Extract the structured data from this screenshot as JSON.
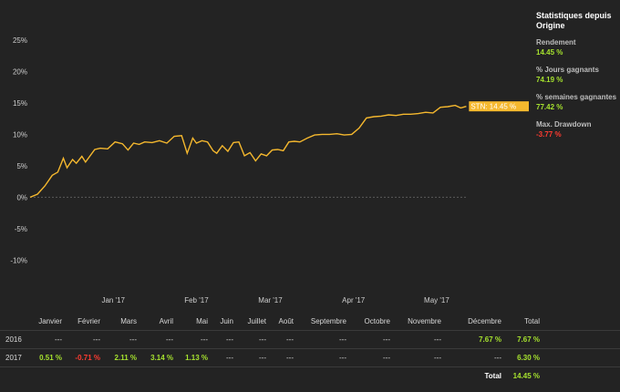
{
  "chart_data": {
    "type": "line",
    "xlim": [
      0,
      26
    ],
    "ylim": [
      -15,
      27
    ],
    "y_ticks": [
      25,
      20,
      15,
      10,
      5,
      0,
      -5,
      -10
    ],
    "y_tick_labels": [
      "25%",
      "20%",
      "15%",
      "10%",
      "5%",
      "0%",
      "-5%",
      "-10%"
    ],
    "x_ticks": [
      4.5,
      9,
      13,
      17.5,
      22
    ],
    "x_tick_labels": [
      "Jan '17",
      "Feb '17",
      "Mar '17",
      "Apr '17",
      "May '17"
    ],
    "series": [
      {
        "name": "STN",
        "color": "#f5b82e",
        "x": [
          0,
          0.4,
          0.8,
          1.2,
          1.5,
          1.8,
          2.0,
          2.3,
          2.5,
          2.8,
          3.0,
          3.5,
          3.8,
          4.2,
          4.6,
          5.0,
          5.3,
          5.6,
          5.9,
          6.2,
          6.6,
          7.0,
          7.4,
          7.8,
          8.2,
          8.5,
          8.8,
          9.0,
          9.3,
          9.6,
          9.9,
          10.1,
          10.4,
          10.7,
          11.0,
          11.3,
          11.6,
          11.9,
          12.2,
          12.5,
          12.8,
          13.1,
          13.4,
          13.7,
          14.0,
          14.3,
          14.6,
          15.0,
          15.4,
          15.8,
          16.2,
          16.6,
          17.0,
          17.4,
          17.8,
          18.2,
          18.6,
          19.0,
          19.4,
          19.8,
          20.2,
          20.6,
          21.0,
          21.4,
          21.8,
          22.2,
          22.6,
          23.0,
          23.3,
          23.6
        ],
        "values": [
          0,
          0.5,
          1.8,
          3.5,
          4.0,
          6.2,
          4.7,
          6.0,
          5.4,
          6.5,
          5.6,
          7.6,
          7.8,
          7.7,
          8.8,
          8.5,
          7.5,
          8.6,
          8.4,
          8.8,
          8.7,
          9.0,
          8.6,
          9.7,
          9.8,
          7.0,
          9.4,
          8.6,
          9.0,
          8.8,
          7.4,
          7.0,
          8.2,
          7.3,
          8.7,
          8.8,
          6.6,
          7.1,
          5.8,
          6.9,
          6.6,
          7.5,
          7.6,
          7.4,
          8.8,
          8.9,
          8.8,
          9.4,
          9.9,
          10.0,
          10.0,
          10.1,
          9.9,
          10.0,
          11.0,
          12.6,
          12.8,
          12.9,
          13.1,
          13.0,
          13.2,
          13.2,
          13.3,
          13.5,
          13.4,
          14.3,
          14.4,
          14.6,
          14.2,
          14.45
        ]
      }
    ],
    "end_label": "STN: 14.45 %",
    "grid": false
  },
  "stats": {
    "title": "Statistiques depuis Origine",
    "items": [
      {
        "label": "Rendement",
        "value": "14.45 %",
        "tone": "green"
      },
      {
        "label": "% Jours gagnants",
        "value": "74.19 %",
        "tone": "green"
      },
      {
        "label": "% semaines gagnantes",
        "value": "77.42 %",
        "tone": "green"
      },
      {
        "label": "Max. Drawdown",
        "value": "-3.77 %",
        "tone": "red"
      }
    ]
  },
  "monthly": {
    "headers": [
      "Janvier",
      "Février",
      "Mars",
      "Avril",
      "Mai",
      "Juin",
      "Juillet",
      "Août",
      "Septembre",
      "Octobre",
      "Novembre",
      "Décembre",
      "Total"
    ],
    "rows": [
      {
        "year": "2016",
        "cells": [
          "---",
          "---",
          "---",
          "---",
          "---",
          "---",
          "---",
          "---",
          "---",
          "---",
          "---",
          "7.67 %",
          "7.67 %"
        ]
      },
      {
        "year": "2017",
        "cells": [
          "0.51 %",
          "-0.71 %",
          "2.11 %",
          "3.14 %",
          "1.13 %",
          "---",
          "---",
          "---",
          "---",
          "---",
          "---",
          "---",
          "6.30 %"
        ]
      }
    ],
    "total_label": "Total",
    "total_value": "14.45 %"
  }
}
